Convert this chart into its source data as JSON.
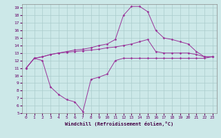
{
  "xlabel": "Windchill (Refroidissement éolien,°C)",
  "bg_color": "#cce8e8",
  "grid_color": "#aacccc",
  "line_color": "#993399",
  "xlim": [
    -0.5,
    23.5
  ],
  "ylim": [
    5,
    19.5
  ],
  "xticks": [
    0,
    1,
    2,
    3,
    4,
    5,
    6,
    7,
    8,
    9,
    10,
    11,
    12,
    13,
    14,
    15,
    16,
    17,
    18,
    19,
    20,
    21,
    22,
    23
  ],
  "yticks": [
    5,
    6,
    7,
    8,
    9,
    10,
    11,
    12,
    13,
    14,
    15,
    16,
    17,
    18,
    19
  ],
  "curve1_x": [
    0,
    1,
    2,
    3,
    4,
    5,
    6,
    7,
    8,
    9,
    10,
    11,
    12,
    13,
    14,
    15,
    16,
    17,
    18,
    19,
    20,
    21,
    22,
    23
  ],
  "curve1_y": [
    11,
    12.3,
    12.0,
    8.5,
    7.5,
    6.8,
    6.5,
    5.2,
    9.5,
    9.8,
    10.2,
    12.0,
    12.3,
    12.3,
    12.3,
    12.3,
    12.3,
    12.3,
    12.3,
    12.3,
    12.3,
    12.3,
    12.3,
    12.5
  ],
  "curve2_x": [
    0,
    1,
    2,
    3,
    4,
    5,
    6,
    7,
    8,
    9,
    10,
    11,
    12,
    13,
    14,
    15,
    16,
    17,
    18,
    19,
    20,
    21,
    22,
    23
  ],
  "curve2_y": [
    11,
    12.3,
    12.5,
    12.8,
    13.0,
    13.2,
    13.4,
    13.5,
    13.7,
    14.0,
    14.2,
    14.8,
    18.0,
    19.2,
    19.2,
    18.5,
    16.0,
    15.0,
    14.8,
    14.5,
    14.2,
    13.2,
    12.5,
    12.5
  ],
  "curve3_x": [
    0,
    1,
    2,
    3,
    4,
    5,
    6,
    7,
    8,
    9,
    10,
    11,
    12,
    13,
    14,
    15,
    16,
    17,
    18,
    19,
    20,
    21,
    22,
    23
  ],
  "curve3_y": [
    11,
    12.3,
    12.5,
    12.8,
    13.0,
    13.1,
    13.2,
    13.3,
    13.4,
    13.5,
    13.7,
    13.8,
    14.0,
    14.2,
    14.5,
    14.8,
    13.2,
    13.0,
    13.0,
    13.0,
    13.0,
    12.8,
    12.5,
    12.5
  ]
}
